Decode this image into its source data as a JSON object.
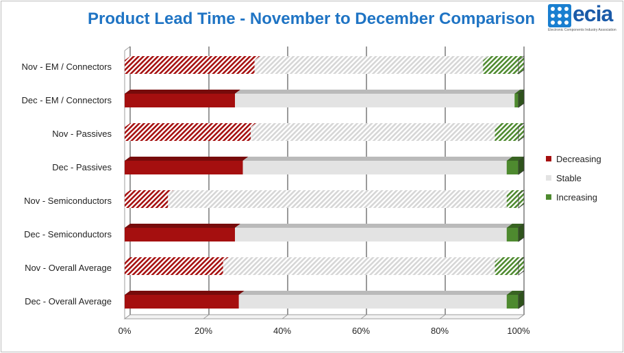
{
  "title": "Product Lead Time - November to December Comparison",
  "logo": {
    "text": "ecia",
    "subtitle": "Electronic Components Industry Association"
  },
  "chart_data": {
    "type": "bar",
    "orientation": "horizontal",
    "stacked": "100%",
    "title": "Product Lead Time - November to December Comparison",
    "xlabel": "",
    "ylabel": "",
    "xlim": [
      0,
      100
    ],
    "x_ticks": [
      "0%",
      "20%",
      "40%",
      "60%",
      "80%",
      "100%"
    ],
    "grid": "vertical",
    "legend_position": "right",
    "categories": [
      "Nov - EM / Connectors",
      "Dec - EM / Connectors",
      "Nov - Passives",
      "Dec - Passives",
      "Nov - Semiconductors",
      "Dec - Semiconductors",
      "Nov - Overall Average",
      "Dec - Overall Average"
    ],
    "series": [
      {
        "name": "Decreasing",
        "color": "#a50f0f",
        "values": [
          33,
          28,
          32,
          30,
          11,
          28,
          25,
          29
        ]
      },
      {
        "name": "Stable",
        "color": "#e3e3e3",
        "values": [
          58,
          71,
          62,
          67,
          86,
          69,
          69,
          68
        ]
      },
      {
        "name": "Increasing",
        "color": "#4e8a2f",
        "values": [
          9,
          1,
          6,
          3,
          3,
          3,
          6,
          3
        ]
      }
    ],
    "hatched_categories": [
      "Nov - EM / Connectors",
      "Nov - Passives",
      "Nov - Semiconductors",
      "Nov - Overall Average"
    ]
  }
}
